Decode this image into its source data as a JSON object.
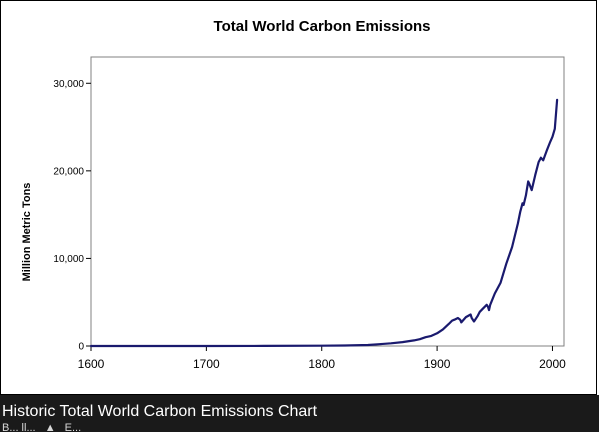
{
  "caption": {
    "title": "Historic Total World Carbon Emissions Chart",
    "partial_text_left": "B... ll...",
    "partial_text_right": "E..."
  },
  "colors": {
    "line": "#1a1a6e",
    "caption_background": "#1a1a1a",
    "caption_text": "#ffffff"
  },
  "chart_data": {
    "type": "line",
    "title": "Total World Carbon Emissions",
    "xlabel": "",
    "ylabel": "Million Metric Tons",
    "xlim": [
      1600,
      2010
    ],
    "ylim": [
      0,
      33000
    ],
    "x_ticks": [
      1600,
      1700,
      1800,
      1900,
      2000
    ],
    "x_tick_labels": [
      "1600",
      "1700",
      "1800",
      "1900",
      "2000"
    ],
    "y_ticks": [
      0,
      10000,
      20000,
      30000
    ],
    "y_tick_labels": [
      "0",
      "10,000",
      "20,000",
      "30,000"
    ],
    "grid": false,
    "legend": "none",
    "series": [
      {
        "x": [
          1600,
          1700,
          1750,
          1800,
          1820,
          1840,
          1850,
          1860,
          1870,
          1880,
          1885,
          1890,
          1895,
          1900,
          1905,
          1910,
          1913,
          1915,
          1918,
          1920,
          1921,
          1925,
          1929,
          1930,
          1932,
          1935,
          1937,
          1940,
          1943,
          1944,
          1945,
          1946,
          1950,
          1955,
          1960,
          1965,
          1970,
          1972,
          1974,
          1975,
          1977,
          1979,
          1980,
          1982,
          1985,
          1988,
          1990,
          1992,
          1995,
          1998,
          2000,
          2002,
          2004
        ],
        "y": [
          0,
          0,
          10,
          30,
          60,
          110,
          200,
          310,
          450,
          640,
          780,
          1000,
          1150,
          1450,
          1900,
          2500,
          2900,
          3000,
          3200,
          3000,
          2700,
          3300,
          3600,
          3200,
          2800,
          3400,
          3900,
          4300,
          4700,
          4500,
          4100,
          4700,
          6000,
          7200,
          9400,
          11300,
          14000,
          15300,
          16300,
          16100,
          17200,
          18800,
          18500,
          17800,
          19500,
          21000,
          21500,
          21200,
          22300,
          23300,
          23900,
          24800,
          28100
        ]
      }
    ]
  }
}
